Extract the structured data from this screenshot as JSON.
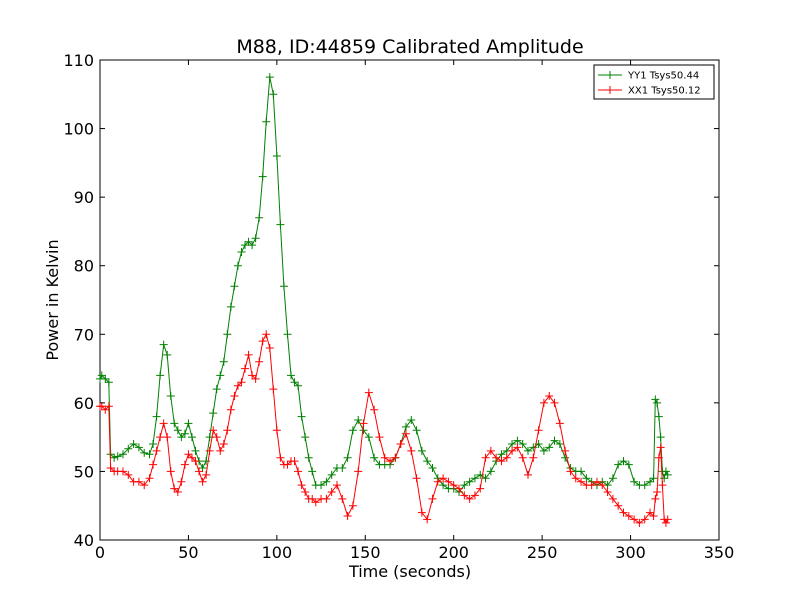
{
  "chart_data": {
    "type": "line",
    "title": "M88, ID:44859 Calibrated Amplitude",
    "xlabel": "Time (seconds)",
    "ylabel": "Power in Kelvin",
    "xlim": [
      0,
      350
    ],
    "ylim": [
      40,
      110
    ],
    "xticks": [
      "0",
      "50",
      "100",
      "150",
      "200",
      "250",
      "300",
      "350"
    ],
    "yticks": [
      "40",
      "50",
      "60",
      "70",
      "80",
      "90",
      "100",
      "110"
    ],
    "grid": false,
    "legend_position": "top-right",
    "series": [
      {
        "name": "YY1 Tsys50.44",
        "color": "#008000",
        "marker": "plus",
        "x": [
          0,
          1,
          3,
          5,
          6,
          8,
          10,
          13,
          16,
          19,
          22,
          25,
          28,
          30,
          32,
          34,
          36,
          38,
          40,
          42,
          44,
          46,
          48,
          50,
          52,
          54,
          56,
          58,
          60,
          62,
          64,
          66,
          68,
          70,
          72,
          74,
          76,
          78,
          80,
          82,
          84,
          86,
          88,
          90,
          92,
          94,
          96,
          98,
          100,
          102,
          104,
          106,
          108,
          110,
          112,
          114,
          116,
          118,
          120,
          122,
          125,
          128,
          131,
          134,
          137,
          140,
          143,
          146,
          149,
          152,
          155,
          158,
          161,
          164,
          167,
          170,
          173,
          176,
          179,
          182,
          185,
          188,
          191,
          194,
          197,
          200,
          203,
          206,
          209,
          212,
          215,
          218,
          221,
          224,
          227,
          230,
          233,
          236,
          239,
          242,
          245,
          248,
          251,
          254,
          257,
          260,
          263,
          266,
          269,
          272,
          275,
          278,
          281,
          284,
          287,
          290,
          293,
          296,
          299,
          302,
          305,
          308,
          311,
          313,
          314,
          315,
          316,
          317,
          318,
          319,
          320,
          321
        ],
        "y": [
          63.5,
          64.0,
          63.5,
          63.0,
          52.5,
          52.0,
          52.2,
          52.5,
          53.3,
          54.0,
          53.5,
          52.7,
          52.5,
          54.0,
          58.0,
          64.0,
          68.5,
          67.0,
          61.0,
          57.0,
          56.0,
          55.0,
          55.5,
          57.0,
          55.0,
          53.0,
          51.5,
          50.5,
          51.5,
          55.0,
          58.5,
          62.0,
          64.0,
          66.0,
          70.0,
          74.0,
          77.0,
          80.0,
          82.0,
          83.0,
          83.5,
          83.0,
          84.0,
          87.0,
          93.0,
          101.0,
          107.5,
          105.0,
          96.0,
          86.0,
          77.0,
          70.0,
          64.0,
          63.0,
          62.5,
          58.0,
          55.0,
          52.0,
          50.0,
          48.0,
          48.0,
          48.5,
          49.5,
          50.5,
          50.5,
          52.0,
          56.0,
          57.5,
          56.0,
          55.0,
          52.0,
          51.0,
          51.0,
          51.0,
          52.0,
          54.0,
          56.5,
          57.5,
          56.0,
          53.0,
          51.5,
          50.5,
          49.0,
          48.0,
          47.5,
          47.5,
          47.0,
          48.0,
          48.5,
          49.0,
          49.5,
          49.0,
          50.0,
          51.5,
          52.5,
          53.0,
          54.0,
          54.5,
          54.0,
          53.0,
          53.5,
          54.0,
          53.0,
          53.5,
          54.5,
          54.0,
          52.0,
          50.5,
          50.0,
          50.0,
          49.0,
          48.5,
          48.0,
          48.5,
          48.0,
          49.0,
          51.0,
          51.5,
          51.0,
          48.5,
          48.0,
          48.0,
          48.5,
          49.0,
          60.5,
          60.0,
          58.0,
          55.0,
          50.0,
          49.0,
          50.0,
          49.5
        ]
      },
      {
        "name": "XX1 Tsys50.12",
        "color": "#ff0000",
        "marker": "plus",
        "x": [
          0,
          1,
          3,
          5,
          6,
          8,
          10,
          13,
          16,
          19,
          22,
          25,
          28,
          30,
          32,
          34,
          36,
          38,
          40,
          42,
          44,
          46,
          48,
          50,
          52,
          54,
          56,
          58,
          60,
          62,
          64,
          66,
          68,
          70,
          72,
          74,
          76,
          78,
          80,
          82,
          84,
          86,
          88,
          90,
          92,
          94,
          96,
          98,
          100,
          102,
          104,
          106,
          108,
          110,
          112,
          114,
          116,
          118,
          120,
          122,
          125,
          128,
          131,
          134,
          137,
          140,
          143,
          146,
          149,
          152,
          155,
          158,
          161,
          164,
          167,
          170,
          173,
          176,
          179,
          182,
          185,
          188,
          191,
          194,
          197,
          200,
          203,
          206,
          209,
          212,
          215,
          218,
          221,
          224,
          227,
          230,
          233,
          236,
          239,
          242,
          245,
          248,
          251,
          254,
          257,
          260,
          263,
          266,
          269,
          272,
          275,
          278,
          281,
          284,
          287,
          290,
          293,
          296,
          299,
          302,
          305,
          308,
          311,
          313,
          314,
          315,
          316,
          317,
          318,
          319,
          320,
          321
        ],
        "y": [
          59.5,
          59.5,
          59.0,
          59.5,
          50.5,
          50.0,
          50.0,
          50.0,
          49.5,
          48.5,
          48.5,
          48.0,
          49.0,
          51.0,
          53.0,
          55.0,
          57.0,
          55.0,
          50.0,
          47.5,
          47.0,
          48.5,
          51.0,
          52.5,
          52.0,
          51.5,
          50.0,
          48.5,
          49.5,
          53.0,
          56.0,
          55.0,
          53.0,
          54.0,
          56.0,
          59.0,
          61.0,
          62.5,
          63.0,
          65.0,
          67.0,
          64.0,
          63.5,
          66.0,
          69.0,
          70.0,
          68.0,
          62.0,
          56.0,
          52.0,
          51.0,
          51.0,
          51.5,
          51.5,
          50.0,
          48.0,
          47.0,
          46.0,
          46.0,
          45.5,
          46.0,
          46.0,
          47.0,
          48.0,
          46.0,
          43.5,
          45.0,
          50.0,
          57.0,
          61.5,
          59.0,
          55.0,
          52.0,
          51.5,
          52.0,
          54.0,
          55.5,
          53.0,
          49.0,
          44.0,
          43.0,
          46.0,
          48.5,
          49.0,
          48.5,
          48.0,
          47.5,
          46.5,
          46.0,
          46.5,
          47.5,
          52.0,
          53.0,
          52.0,
          51.5,
          52.0,
          53.0,
          53.5,
          52.0,
          49.5,
          52.0,
          56.0,
          60.0,
          61.0,
          60.0,
          57.0,
          53.0,
          50.0,
          49.0,
          48.5,
          48.0,
          48.0,
          48.5,
          48.0,
          47.0,
          46.0,
          45.0,
          44.0,
          43.5,
          43.0,
          42.5,
          43.0,
          44.0,
          43.5,
          46.0,
          47.0,
          52.0,
          53.5,
          48.0,
          43.0,
          42.5,
          43.0
        ]
      }
    ]
  }
}
